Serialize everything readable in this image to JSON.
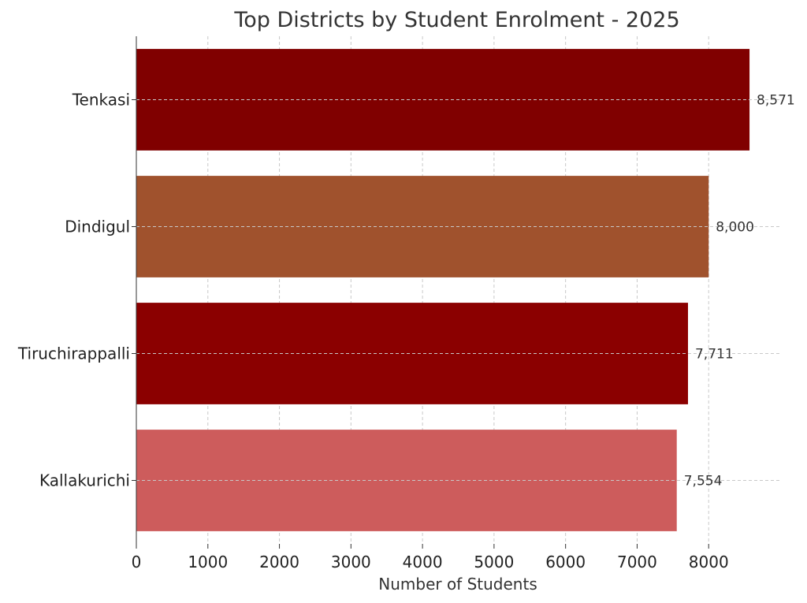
{
  "chart_data": {
    "type": "bar",
    "orientation": "horizontal",
    "title": "Top Districts by Student Enrolment - 2025",
    "xlabel": "Number of Students",
    "ylabel": "",
    "categories": [
      "Tenkasi",
      "Dindigul",
      "Tiruchirappalli",
      "Kallakurichi"
    ],
    "values": [
      8571,
      8000,
      7711,
      7554
    ],
    "value_labels": [
      "8,571",
      "8,000",
      "7,711",
      "7,554"
    ],
    "colors": [
      "#800000",
      "#A0522D",
      "#8B0000",
      "#CD5C5C"
    ],
    "xlim": [
      0,
      9000
    ],
    "xticks": [
      0,
      1000,
      2000,
      3000,
      4000,
      5000,
      6000,
      7000,
      8000
    ],
    "grid": true
  }
}
